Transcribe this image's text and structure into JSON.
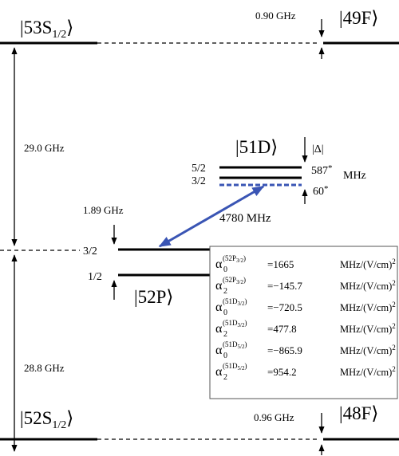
{
  "states": {
    "s53": {
      "text": "|53S",
      "sub": "1/2",
      "close": "⟩"
    },
    "f49": {
      "text": "|49F⟩"
    },
    "d51": {
      "text": "|51D⟩"
    },
    "p52": {
      "text": "|52P⟩"
    },
    "s52": {
      "text": "|52S",
      "sub": "1/2",
      "close": "⟩"
    },
    "f48": {
      "text": "|48F⟩"
    }
  },
  "splittings": {
    "s53_f49": "0.90 GHz",
    "s53_p52": "29.0 GHz",
    "p52_fine": "1.89 GHz",
    "p52_d51": "4780 MHz",
    "s52_p52": "28.8 GHz",
    "s52_f48": "0.96 GHz"
  },
  "d51_fine": {
    "delta": "|Δ|",
    "j52": "5/2",
    "j32": "3/2",
    "shift52": "587",
    "shift32": "60",
    "star": "*",
    "unit": "MHz"
  },
  "p52_levels": {
    "j32": "3/2",
    "j12": "1/2"
  },
  "table": {
    "symbol": "α",
    "open": "(",
    "close": ")",
    "eq": "=",
    "unit": "MHz/(V/cm)",
    "power": "2",
    "rows": [
      {
        "order": "0",
        "state": "52P",
        "j": "3/2",
        "value": "1665"
      },
      {
        "order": "2",
        "state": "52P",
        "j": "3/2",
        "value": "−145.7"
      },
      {
        "order": "0",
        "state": "51D",
        "j": "3/2",
        "value": "−720.5"
      },
      {
        "order": "2",
        "state": "51D",
        "j": "3/2",
        "value": "477.8"
      },
      {
        "order": "0",
        "state": "51D",
        "j": "5/2",
        "value": "−865.9"
      },
      {
        "order": "2",
        "state": "51D",
        "j": "5/2",
        "value": "954.2"
      }
    ]
  }
}
